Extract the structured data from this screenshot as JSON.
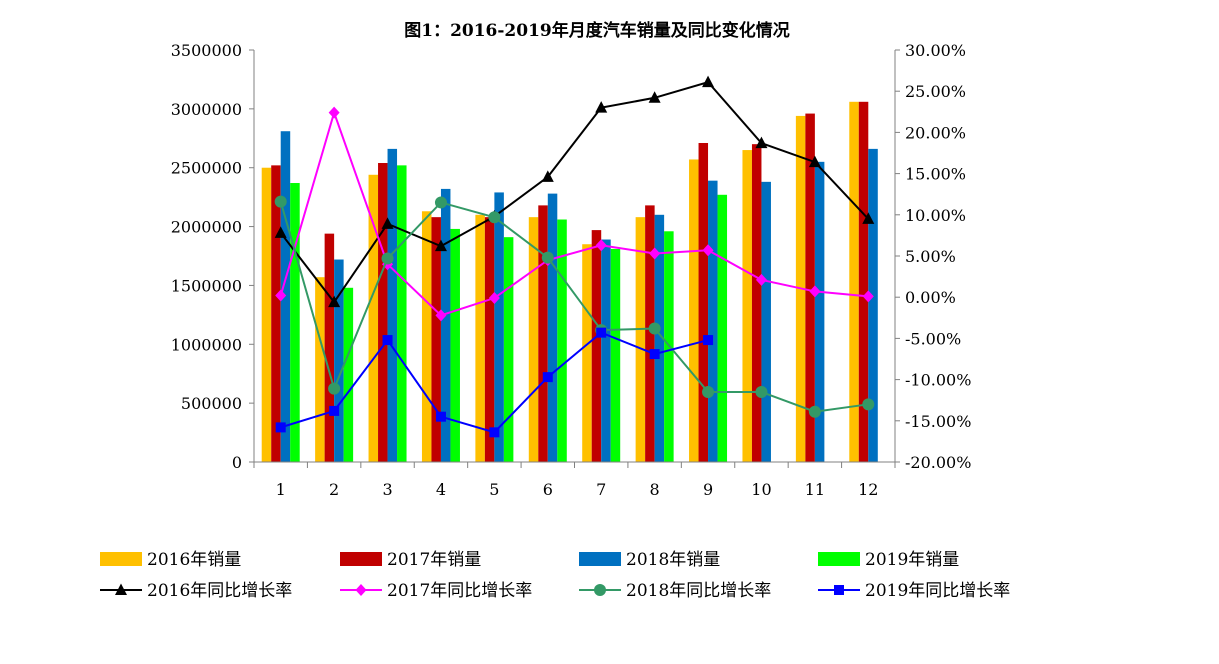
{
  "chart_data": {
    "type": "bar",
    "title": "图1：2016-2019年月度汽车销量及同比变化情况",
    "categories": [
      "1",
      "2",
      "3",
      "4",
      "5",
      "6",
      "7",
      "8",
      "9",
      "10",
      "11",
      "12"
    ],
    "y_left": {
      "min": 0,
      "max": 3500000,
      "ticks": [
        "0",
        "500000",
        "1000000",
        "1500000",
        "2000000",
        "2500000",
        "3000000",
        "3500000"
      ]
    },
    "y_right": {
      "min": -20,
      "max": 30,
      "unit": "%",
      "ticks": [
        "-20.00%",
        "-15.00%",
        "-10.00%",
        "-5.00%",
        "0.00%",
        "5.00%",
        "10.00%",
        "15.00%",
        "20.00%",
        "25.00%",
        "30.00%"
      ]
    },
    "bar_series": [
      {
        "name": "2016年销量",
        "color": "#FFC000",
        "values": [
          2500000,
          1570000,
          2440000,
          2130000,
          2100000,
          2080000,
          1850000,
          2080000,
          2570000,
          2650000,
          2940000,
          3060000
        ]
      },
      {
        "name": "2017年销量",
        "color": "#C00000",
        "values": [
          2520000,
          1940000,
          2540000,
          2080000,
          2080000,
          2180000,
          1970000,
          2180000,
          2710000,
          2700000,
          2960000,
          3060000
        ]
      },
      {
        "name": "2018年销量",
        "color": "#0070C0",
        "values": [
          2810000,
          1720000,
          2660000,
          2320000,
          2290000,
          2280000,
          1890000,
          2100000,
          2390000,
          2380000,
          2550000,
          2660000
        ]
      },
      {
        "name": "2019年销量",
        "color": "#00FF00",
        "values": [
          2370000,
          1480000,
          2520000,
          1980000,
          1910000,
          2060000,
          1810000,
          1960000,
          2270000,
          null,
          null,
          null
        ]
      }
    ],
    "line_series": [
      {
        "name": "2016年同比增长率",
        "color": "#000000",
        "marker": "triangle",
        "values": [
          7.8,
          -0.6,
          8.9,
          6.2,
          9.8,
          14.6,
          23.0,
          24.2,
          26.1,
          18.7,
          16.4,
          9.5
        ]
      },
      {
        "name": "2017年同比增长率",
        "color": "#FF00FF",
        "marker": "diamond",
        "values": [
          0.2,
          22.4,
          4.0,
          -2.2,
          -0.1,
          4.5,
          6.3,
          5.3,
          5.7,
          2.1,
          0.7,
          0.1
        ]
      },
      {
        "name": "2018年同比增长率",
        "color": "#339966",
        "marker": "circle",
        "values": [
          11.6,
          -11.1,
          4.7,
          11.5,
          9.7,
          4.8,
          -4.0,
          -3.8,
          -11.5,
          -11.5,
          -13.9,
          -13.0
        ]
      },
      {
        "name": "2019年同比增长率",
        "color": "#0000FF",
        "marker": "square",
        "values": [
          -15.8,
          -13.8,
          -5.2,
          -14.5,
          -16.4,
          -9.7,
          -4.3,
          -6.9,
          -5.2,
          null,
          null,
          null
        ]
      }
    ],
    "legend_position": "bottom",
    "grid": false
  }
}
